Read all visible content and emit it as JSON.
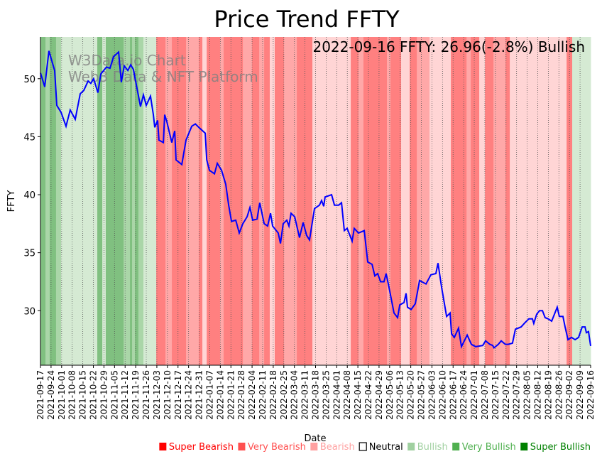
{
  "chart_data": {
    "type": "line",
    "title": "Price Trend FFTY",
    "annotation": "2022-09-16 FFTY: 26.96(-2.8%) Bullish",
    "watermark": [
      "W3Data.io Chart",
      "Web3 Data & NFT Platform"
    ],
    "xlabel": "Date",
    "ylabel": "FFTY",
    "ylim": [
      25.3,
      53.6
    ],
    "yticks": [
      30,
      35,
      40,
      45,
      50
    ],
    "x_unit": "days since 2021-09-17",
    "xlim": [
      0,
      364
    ],
    "xticks": [
      "2021-09-17",
      "2021-09-24",
      "2021-10-01",
      "2021-10-08",
      "2021-10-15",
      "2021-10-22",
      "2021-10-29",
      "2021-11-05",
      "2021-11-12",
      "2021-11-19",
      "2021-11-26",
      "2021-12-03",
      "2021-12-10",
      "2021-12-17",
      "2021-12-24",
      "2021-12-31",
      "2022-01-07",
      "2022-01-14",
      "2022-01-21",
      "2022-01-28",
      "2022-02-04",
      "2022-02-11",
      "2022-02-18",
      "2022-02-25",
      "2022-03-04",
      "2022-03-11",
      "2022-03-18",
      "2022-03-25",
      "2022-04-01",
      "2022-04-08",
      "2022-04-15",
      "2022-04-22",
      "2022-04-29",
      "2022-05-06",
      "2022-05-13",
      "2022-05-20",
      "2022-05-27",
      "2022-06-03",
      "2022-06-10",
      "2022-06-17",
      "2022-06-24",
      "2022-07-01",
      "2022-07-08",
      "2022-07-15",
      "2022-07-22",
      "2022-07-29",
      "2022-08-05",
      "2022-08-12",
      "2022-08-19",
      "2022-08-26",
      "2022-09-02",
      "2022-09-09",
      "2022-09-16"
    ],
    "series": [
      {
        "name": "FFTY",
        "color": "#0000ff",
        "points": [
          [
            0,
            50.5
          ],
          [
            2.8,
            49.3
          ],
          [
            5.6,
            52.4
          ],
          [
            9.4,
            50.7
          ],
          [
            10.8,
            47.7
          ],
          [
            13.6,
            47.1
          ],
          [
            16.9,
            45.9
          ],
          [
            19.7,
            47.3
          ],
          [
            23.0,
            46.5
          ],
          [
            26.3,
            48.7
          ],
          [
            28.7,
            49.0
          ],
          [
            31.5,
            49.8
          ],
          [
            33.3,
            49.6
          ],
          [
            35.2,
            50.0
          ],
          [
            38.0,
            48.8
          ],
          [
            39.9,
            50.4
          ],
          [
            43.7,
            51.0
          ],
          [
            46.0,
            50.9
          ],
          [
            48.4,
            51.9
          ],
          [
            51.7,
            52.3
          ],
          [
            53.5,
            49.7
          ],
          [
            55.4,
            51.1
          ],
          [
            57.8,
            50.7
          ],
          [
            59.7,
            51.2
          ],
          [
            61.5,
            50.8
          ],
          [
            66.2,
            47.6
          ],
          [
            68.1,
            48.6
          ],
          [
            70.0,
            47.7
          ],
          [
            72.8,
            48.5
          ],
          [
            74.7,
            46.9
          ],
          [
            75.6,
            45.8
          ],
          [
            77.5,
            46.4
          ],
          [
            78.4,
            44.7
          ],
          [
            81.3,
            44.5
          ],
          [
            82.2,
            46.9
          ],
          [
            83.6,
            46.3
          ],
          [
            86.9,
            44.5
          ],
          [
            88.8,
            45.5
          ],
          [
            89.7,
            43.0
          ],
          [
            93.5,
            42.6
          ],
          [
            96.3,
            44.7
          ],
          [
            100.1,
            45.9
          ],
          [
            102.5,
            46.1
          ],
          [
            104.8,
            45.8
          ],
          [
            109.0,
            45.3
          ],
          [
            110.0,
            43.0
          ],
          [
            111.8,
            42.1
          ],
          [
            115.1,
            41.8
          ],
          [
            117.0,
            42.7
          ],
          [
            119.8,
            42.1
          ],
          [
            122.6,
            40.9
          ],
          [
            124.5,
            39.1
          ],
          [
            126.4,
            37.7
          ],
          [
            129.2,
            37.8
          ],
          [
            131.5,
            36.7
          ],
          [
            133.9,
            37.5
          ],
          [
            136.7,
            38.1
          ],
          [
            138.6,
            38.9
          ],
          [
            140.4,
            37.8
          ],
          [
            143.3,
            37.9
          ],
          [
            145.1,
            39.3
          ],
          [
            148.0,
            37.5
          ],
          [
            150.3,
            37.3
          ],
          [
            152.2,
            38.4
          ],
          [
            153.6,
            37.3
          ],
          [
            157.3,
            36.7
          ],
          [
            158.8,
            35.8
          ],
          [
            160.6,
            37.5
          ],
          [
            163.0,
            37.8
          ],
          [
            164.4,
            37.3
          ],
          [
            165.8,
            38.4
          ],
          [
            168.2,
            38.1
          ],
          [
            171.4,
            36.3
          ],
          [
            173.8,
            37.6
          ],
          [
            176.1,
            36.5
          ],
          [
            178.0,
            36.1
          ],
          [
            181.3,
            38.8
          ],
          [
            184.6,
            39.1
          ],
          [
            186.0,
            39.5
          ],
          [
            187.4,
            39.0
          ],
          [
            188.3,
            39.8
          ],
          [
            192.6,
            40.0
          ],
          [
            194.5,
            39.1
          ],
          [
            197.3,
            39.1
          ],
          [
            199.2,
            39.3
          ],
          [
            201.0,
            36.9
          ],
          [
            202.9,
            37.1
          ],
          [
            206.2,
            36.0
          ],
          [
            207.6,
            37.1
          ],
          [
            210.4,
            36.7
          ],
          [
            214.2,
            36.9
          ],
          [
            216.5,
            34.2
          ],
          [
            219.4,
            34.0
          ],
          [
            221.2,
            33.0
          ],
          [
            223.1,
            33.2
          ],
          [
            225.0,
            32.5
          ],
          [
            227.3,
            32.5
          ],
          [
            228.7,
            33.2
          ],
          [
            230.6,
            32.0
          ],
          [
            233.9,
            29.8
          ],
          [
            236.3,
            29.4
          ],
          [
            237.7,
            30.5
          ],
          [
            240.5,
            30.7
          ],
          [
            241.9,
            31.5
          ],
          [
            242.8,
            30.3
          ],
          [
            245.2,
            30.1
          ],
          [
            248.0,
            30.6
          ],
          [
            250.8,
            32.6
          ],
          [
            255.1,
            32.3
          ],
          [
            258.3,
            33.1
          ],
          [
            261.6,
            33.2
          ],
          [
            263.0,
            34.1
          ],
          [
            265.4,
            32.0
          ],
          [
            268.7,
            29.5
          ],
          [
            271.0,
            29.8
          ],
          [
            272.0,
            28.0
          ],
          [
            273.8,
            27.7
          ],
          [
            276.6,
            28.5
          ],
          [
            278.5,
            26.9
          ],
          [
            282.3,
            27.9
          ],
          [
            285.1,
            27.1
          ],
          [
            287.9,
            26.9
          ],
          [
            292.6,
            27.0
          ],
          [
            294.5,
            27.4
          ],
          [
            297.3,
            27.1
          ],
          [
            299.2,
            27.0
          ],
          [
            300.1,
            26.8
          ],
          [
            302.9,
            27.1
          ],
          [
            304.8,
            27.4
          ],
          [
            307.6,
            27.1
          ],
          [
            309.5,
            27.1
          ],
          [
            312.3,
            27.2
          ],
          [
            314.2,
            28.4
          ],
          [
            318.0,
            28.6
          ],
          [
            320.8,
            29.0
          ],
          [
            323.2,
            29.3
          ],
          [
            325.5,
            29.3
          ],
          [
            326.4,
            28.9
          ],
          [
            328.3,
            29.7
          ],
          [
            330.2,
            30.0
          ],
          [
            332.1,
            30.0
          ],
          [
            333.9,
            29.4
          ],
          [
            335.8,
            29.3
          ],
          [
            338.2,
            29.1
          ],
          [
            341.9,
            30.3
          ],
          [
            343.3,
            29.5
          ],
          [
            345.7,
            29.5
          ],
          [
            347.1,
            28.6
          ],
          [
            349.0,
            27.5
          ],
          [
            351.3,
            27.7
          ],
          [
            353.7,
            27.5
          ],
          [
            356.0,
            27.7
          ],
          [
            358.4,
            28.6
          ],
          [
            360.3,
            28.6
          ],
          [
            361.2,
            28.1
          ],
          [
            362.6,
            28.2
          ],
          [
            364,
            26.96
          ]
        ]
      }
    ],
    "sentiment_bands": [
      [
        0,
        3.3,
        3
      ],
      [
        3.3,
        6.1,
        2
      ],
      [
        6.1,
        10.3,
        3
      ],
      [
        10.3,
        13.6,
        2
      ],
      [
        13.6,
        37.6,
        1
      ],
      [
        37.6,
        40.9,
        3
      ],
      [
        40.9,
        43.2,
        1
      ],
      [
        43.2,
        55.0,
        3
      ],
      [
        55.0,
        59.2,
        2
      ],
      [
        59.2,
        60.6,
        3
      ],
      [
        60.6,
        62.5,
        2
      ],
      [
        62.5,
        64.8,
        3
      ],
      [
        64.8,
        68.1,
        2
      ],
      [
        68.1,
        76.6,
        1
      ],
      [
        76.6,
        82.7,
        -3
      ],
      [
        82.7,
        86.9,
        -2
      ],
      [
        86.9,
        96.3,
        -3
      ],
      [
        96.3,
        104.8,
        -2
      ],
      [
        104.8,
        107.1,
        -3
      ],
      [
        107.1,
        110.0,
        -1
      ],
      [
        110.0,
        118.8,
        -3
      ],
      [
        118.8,
        121.2,
        -2
      ],
      [
        121.2,
        133.9,
        -3
      ],
      [
        133.9,
        140.0,
        -2
      ],
      [
        140.0,
        144.7,
        -3
      ],
      [
        144.7,
        148.0,
        -2
      ],
      [
        148.0,
        151.7,
        -3
      ],
      [
        151.7,
        155.0,
        -1
      ],
      [
        155.0,
        161.1,
        -3
      ],
      [
        161.1,
        169.6,
        -2
      ],
      [
        169.6,
        179.9,
        -3
      ],
      [
        179.9,
        205.3,
        -1
      ],
      [
        205.3,
        210.4,
        -3
      ],
      [
        210.4,
        213.7,
        -2
      ],
      [
        213.7,
        229.2,
        -3
      ],
      [
        229.2,
        231.6,
        -2
      ],
      [
        231.6,
        238.6,
        -3
      ],
      [
        238.6,
        244.3,
        -1
      ],
      [
        244.3,
        249.0,
        -3
      ],
      [
        249.0,
        257.4,
        -2
      ],
      [
        257.4,
        271.5,
        -1
      ],
      [
        271.5,
        281.9,
        -3
      ],
      [
        281.9,
        284.7,
        -2
      ],
      [
        284.7,
        290.3,
        -3
      ],
      [
        290.3,
        294.1,
        -1
      ],
      [
        294.1,
        299.7,
        -3
      ],
      [
        299.7,
        307.7,
        -2
      ],
      [
        307.7,
        310.5,
        -3
      ],
      [
        310.5,
        348.1,
        -1
      ],
      [
        348.1,
        351.8,
        -3
      ],
      [
        351.8,
        364,
        1
      ]
    ],
    "band_colors": {
      "-3": "#ff8080",
      "-2": "#ffa8a8",
      "-1": "#ffd5d5",
      "1": "#d5ead3",
      "2": "#aad6a8",
      "3": "#80c080"
    },
    "legend": [
      {
        "label": "Super Bearish",
        "color": "#ff0000",
        "filled": true
      },
      {
        "label": "Very Bearish",
        "color": "#ff5050",
        "filled": true
      },
      {
        "label": "Bearish",
        "color": "#ffa0a0",
        "filled": true
      },
      {
        "label": "Neutral",
        "color": "#000000",
        "filled": false
      },
      {
        "label": "Bullish",
        "color": "#a0d0a0",
        "filled": true
      },
      {
        "label": "Very Bullish",
        "color": "#50b050",
        "filled": true
      },
      {
        "label": "Super Bullish",
        "color": "#008000",
        "filled": true
      }
    ],
    "legend_position": "bottom-right"
  }
}
